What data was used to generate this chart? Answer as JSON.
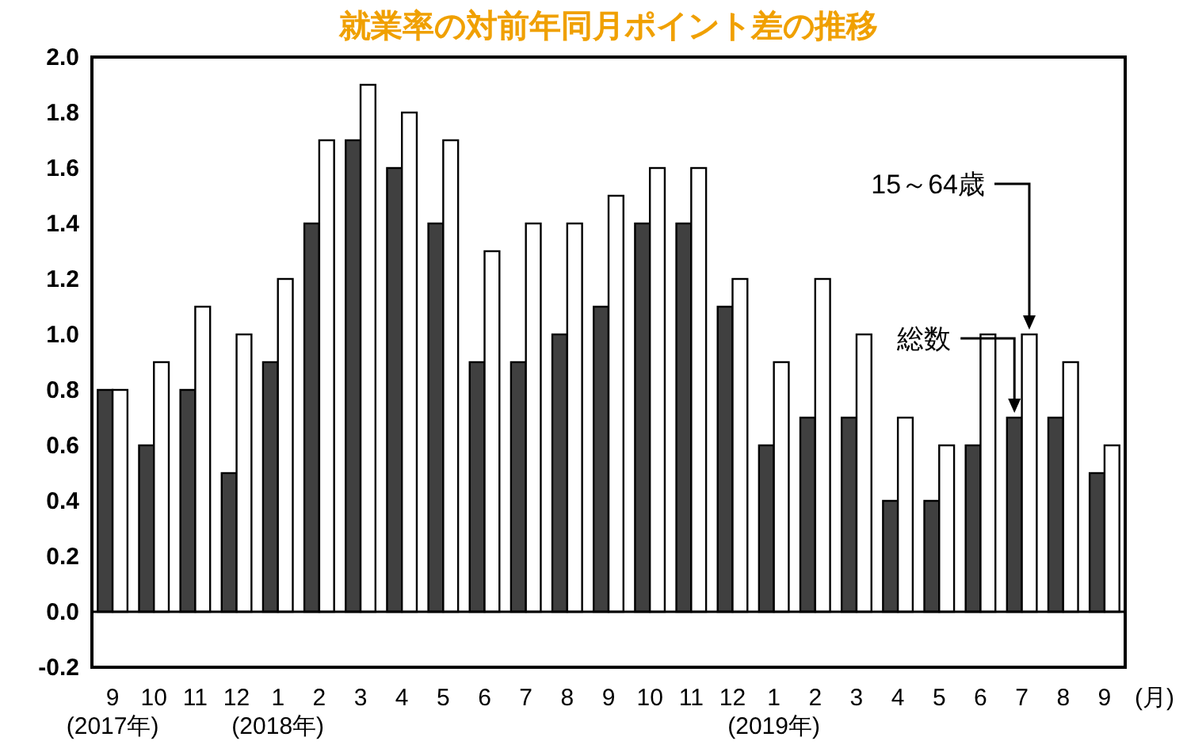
{
  "chart_data": {
    "type": "bar",
    "title": "就業率の対前年同月ポイント差の推移",
    "xlabel": "(月)",
    "categories": [
      "9\n(2017年)",
      "10",
      "11",
      "12",
      "1\n(2018年)",
      "2",
      "3",
      "4",
      "5",
      "6",
      "7",
      "8",
      "9",
      "10",
      "11",
      "12",
      "1\n(2019年)",
      "2",
      "3",
      "4",
      "5",
      "6",
      "7",
      "8",
      "9"
    ],
    "series": [
      {
        "name": "総数",
        "color": "#404040",
        "values": [
          0.8,
          0.6,
          0.8,
          0.5,
          0.9,
          1.4,
          1.7,
          1.6,
          1.4,
          0.9,
          0.9,
          1.0,
          1.1,
          1.4,
          1.4,
          1.1,
          0.6,
          0.7,
          0.7,
          0.4,
          0.4,
          0.6,
          0.7,
          0.7,
          0.5
        ]
      },
      {
        "name": "15～64歳",
        "color": "#ffffff",
        "values": [
          0.8,
          0.9,
          1.1,
          1.0,
          1.2,
          1.7,
          1.9,
          1.8,
          1.7,
          1.3,
          1.4,
          1.4,
          1.5,
          1.6,
          1.6,
          1.2,
          0.9,
          1.2,
          1.0,
          0.7,
          0.6,
          1.0,
          1.0,
          0.9,
          0.6
        ]
      }
    ],
    "ylim": [
      -0.2,
      2.0
    ],
    "yticks": [
      {
        "value": -0.2,
        "label": "-0.2"
      },
      {
        "value": 0,
        "label": "0.0"
      },
      {
        "value": 0.2,
        "label": "0.2"
      },
      {
        "value": 0.4,
        "label": "0.4"
      },
      {
        "value": 0.6,
        "label": "0.6"
      },
      {
        "value": 0.8,
        "label": "0.8"
      },
      {
        "value": 1.0,
        "label": "1.0"
      },
      {
        "value": 1.2,
        "label": "1.2"
      },
      {
        "value": 1.4,
        "label": "1.4"
      },
      {
        "value": 1.6,
        "label": "1.6"
      },
      {
        "value": 1.8,
        "label": "1.8"
      },
      {
        "value": 2.0,
        "label": "2.0"
      }
    ],
    "ref_lines": [
      {
        "axis": "y",
        "value": 0,
        "color": "#000000"
      }
    ],
    "grid": false,
    "legend": false
  }
}
